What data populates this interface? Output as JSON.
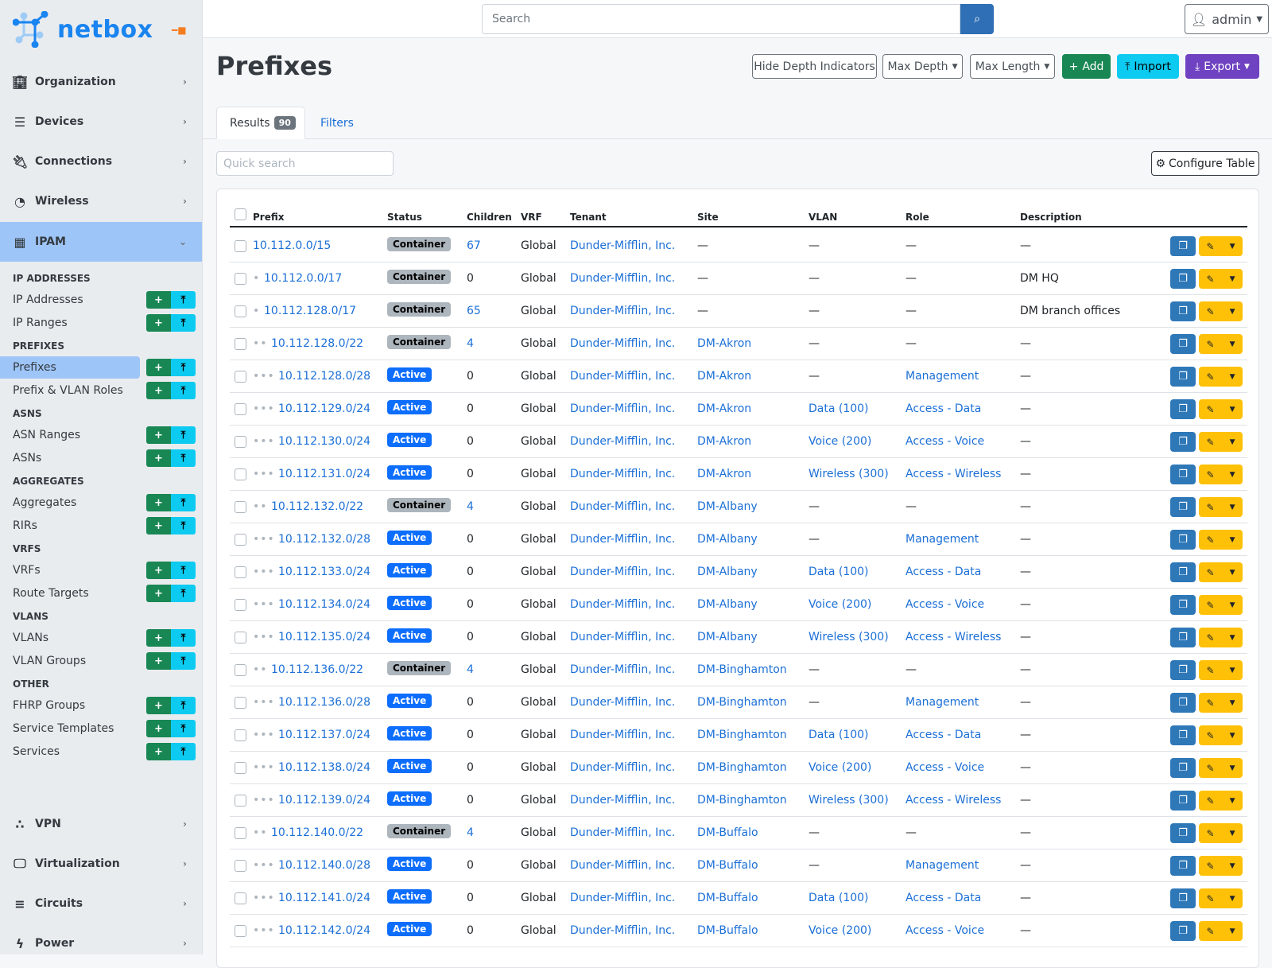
{
  "brand": {
    "name": "netbox"
  },
  "sidebar": {
    "menus_top": [
      {
        "label": "Organization",
        "icon": "building-icon"
      },
      {
        "label": "Devices",
        "icon": "server-icon"
      },
      {
        "label": "Connections",
        "icon": "plug-icon"
      },
      {
        "label": "Wireless",
        "icon": "wifi-icon"
      }
    ],
    "active_menu": {
      "label": "IPAM",
      "icon": "ipam-icon"
    },
    "sections": [
      {
        "title": "IP ADDRESSES",
        "items": [
          "IP Addresses",
          "IP Ranges"
        ]
      },
      {
        "title": "PREFIXES",
        "items": [
          "Prefixes",
          "Prefix & VLAN Roles"
        ]
      },
      {
        "title": "ASNS",
        "items": [
          "ASN Ranges",
          "ASNs"
        ]
      },
      {
        "title": "AGGREGATES",
        "items": [
          "Aggregates",
          "RIRs"
        ]
      },
      {
        "title": "VRFS",
        "items": [
          "VRFs",
          "Route Targets"
        ]
      },
      {
        "title": "VLANS",
        "items": [
          "VLANs",
          "VLAN Groups"
        ]
      },
      {
        "title": "OTHER",
        "items": [
          "FHRP Groups",
          "Service Templates",
          "Services"
        ]
      }
    ],
    "selected_item": "Prefixes",
    "menus_bottom": [
      {
        "label": "VPN",
        "icon": "vpn-icon"
      },
      {
        "label": "Virtualization",
        "icon": "monitor-icon"
      },
      {
        "label": "Circuits",
        "icon": "circuits-icon"
      },
      {
        "label": "Power",
        "icon": "bolt-icon"
      }
    ]
  },
  "header": {
    "search_placeholder": "Search",
    "user": "admin"
  },
  "page": {
    "title": "Prefixes",
    "buttons": {
      "hide_depth": "Hide Depth Indicators",
      "max_depth": "Max Depth",
      "max_length": "Max Length",
      "add": "Add",
      "import": "Import",
      "export": "Export"
    },
    "tabs": {
      "results": "Results",
      "results_count": "90",
      "filters": "Filters"
    },
    "quick_search_placeholder": "Quick search",
    "configure_table": "Configure Table"
  },
  "colors": {
    "primary": "#0d6efd",
    "success": "#198754",
    "info": "#0dcaf0",
    "purple": "#6f42c1",
    "warning": "#ffc107",
    "sidebar_active": "#9ec5f7"
  },
  "table": {
    "columns": [
      "Prefix",
      "Status",
      "Children",
      "VRF",
      "Tenant",
      "Site",
      "VLAN",
      "Role",
      "Description"
    ],
    "rows": [
      {
        "depth": 0,
        "prefix": "10.112.0.0/15",
        "status": "Container",
        "children": "67",
        "vrf": "Global",
        "tenant": "Dunder-Mifflin, Inc.",
        "site": "—",
        "vlan": "—",
        "role": "—",
        "description": "—"
      },
      {
        "depth": 1,
        "prefix": "10.112.0.0/17",
        "status": "Container",
        "children": "0",
        "vrf": "Global",
        "tenant": "Dunder-Mifflin, Inc.",
        "site": "—",
        "vlan": "—",
        "role": "—",
        "description": "DM HQ"
      },
      {
        "depth": 1,
        "prefix": "10.112.128.0/17",
        "status": "Container",
        "children": "65",
        "vrf": "Global",
        "tenant": "Dunder-Mifflin, Inc.",
        "site": "—",
        "vlan": "—",
        "role": "—",
        "description": "DM branch offices"
      },
      {
        "depth": 2,
        "prefix": "10.112.128.0/22",
        "status": "Container",
        "children": "4",
        "vrf": "Global",
        "tenant": "Dunder-Mifflin, Inc.",
        "site": "DM-Akron",
        "vlan": "—",
        "role": "—",
        "description": "—"
      },
      {
        "depth": 3,
        "prefix": "10.112.128.0/28",
        "status": "Active",
        "children": "0",
        "vrf": "Global",
        "tenant": "Dunder-Mifflin, Inc.",
        "site": "DM-Akron",
        "vlan": "—",
        "role": "Management",
        "description": "—"
      },
      {
        "depth": 3,
        "prefix": "10.112.129.0/24",
        "status": "Active",
        "children": "0",
        "vrf": "Global",
        "tenant": "Dunder-Mifflin, Inc.",
        "site": "DM-Akron",
        "vlan": "Data (100)",
        "role": "Access - Data",
        "description": "—"
      },
      {
        "depth": 3,
        "prefix": "10.112.130.0/24",
        "status": "Active",
        "children": "0",
        "vrf": "Global",
        "tenant": "Dunder-Mifflin, Inc.",
        "site": "DM-Akron",
        "vlan": "Voice (200)",
        "role": "Access - Voice",
        "description": "—"
      },
      {
        "depth": 3,
        "prefix": "10.112.131.0/24",
        "status": "Active",
        "children": "0",
        "vrf": "Global",
        "tenant": "Dunder-Mifflin, Inc.",
        "site": "DM-Akron",
        "vlan": "Wireless (300)",
        "role": "Access - Wireless",
        "description": "—"
      },
      {
        "depth": 2,
        "prefix": "10.112.132.0/22",
        "status": "Container",
        "children": "4",
        "vrf": "Global",
        "tenant": "Dunder-Mifflin, Inc.",
        "site": "DM-Albany",
        "vlan": "—",
        "role": "—",
        "description": "—"
      },
      {
        "depth": 3,
        "prefix": "10.112.132.0/28",
        "status": "Active",
        "children": "0",
        "vrf": "Global",
        "tenant": "Dunder-Mifflin, Inc.",
        "site": "DM-Albany",
        "vlan": "—",
        "role": "Management",
        "description": "—"
      },
      {
        "depth": 3,
        "prefix": "10.112.133.0/24",
        "status": "Active",
        "children": "0",
        "vrf": "Global",
        "tenant": "Dunder-Mifflin, Inc.",
        "site": "DM-Albany",
        "vlan": "Data (100)",
        "role": "Access - Data",
        "description": "—"
      },
      {
        "depth": 3,
        "prefix": "10.112.134.0/24",
        "status": "Active",
        "children": "0",
        "vrf": "Global",
        "tenant": "Dunder-Mifflin, Inc.",
        "site": "DM-Albany",
        "vlan": "Voice (200)",
        "role": "Access - Voice",
        "description": "—"
      },
      {
        "depth": 3,
        "prefix": "10.112.135.0/24",
        "status": "Active",
        "children": "0",
        "vrf": "Global",
        "tenant": "Dunder-Mifflin, Inc.",
        "site": "DM-Albany",
        "vlan": "Wireless (300)",
        "role": "Access - Wireless",
        "description": "—"
      },
      {
        "depth": 2,
        "prefix": "10.112.136.0/22",
        "status": "Container",
        "children": "4",
        "vrf": "Global",
        "tenant": "Dunder-Mifflin, Inc.",
        "site": "DM-Binghamton",
        "vlan": "—",
        "role": "—",
        "description": "—"
      },
      {
        "depth": 3,
        "prefix": "10.112.136.0/28",
        "status": "Active",
        "children": "0",
        "vrf": "Global",
        "tenant": "Dunder-Mifflin, Inc.",
        "site": "DM-Binghamton",
        "vlan": "—",
        "role": "Management",
        "description": "—"
      },
      {
        "depth": 3,
        "prefix": "10.112.137.0/24",
        "status": "Active",
        "children": "0",
        "vrf": "Global",
        "tenant": "Dunder-Mifflin, Inc.",
        "site": "DM-Binghamton",
        "vlan": "Data (100)",
        "role": "Access - Data",
        "description": "—"
      },
      {
        "depth": 3,
        "prefix": "10.112.138.0/24",
        "status": "Active",
        "children": "0",
        "vrf": "Global",
        "tenant": "Dunder-Mifflin, Inc.",
        "site": "DM-Binghamton",
        "vlan": "Voice (200)",
        "role": "Access - Voice",
        "description": "—"
      },
      {
        "depth": 3,
        "prefix": "10.112.139.0/24",
        "status": "Active",
        "children": "0",
        "vrf": "Global",
        "tenant": "Dunder-Mifflin, Inc.",
        "site": "DM-Binghamton",
        "vlan": "Wireless (300)",
        "role": "Access - Wireless",
        "description": "—"
      },
      {
        "depth": 2,
        "prefix": "10.112.140.0/22",
        "status": "Container",
        "children": "4",
        "vrf": "Global",
        "tenant": "Dunder-Mifflin, Inc.",
        "site": "DM-Buffalo",
        "vlan": "—",
        "role": "—",
        "description": "—"
      },
      {
        "depth": 3,
        "prefix": "10.112.140.0/28",
        "status": "Active",
        "children": "0",
        "vrf": "Global",
        "tenant": "Dunder-Mifflin, Inc.",
        "site": "DM-Buffalo",
        "vlan": "—",
        "role": "Management",
        "description": "—"
      },
      {
        "depth": 3,
        "prefix": "10.112.141.0/24",
        "status": "Active",
        "children": "0",
        "vrf": "Global",
        "tenant": "Dunder-Mifflin, Inc.",
        "site": "DM-Buffalo",
        "vlan": "Data (100)",
        "role": "Access - Data",
        "description": "—"
      },
      {
        "depth": 3,
        "prefix": "10.112.142.0/24",
        "status": "Active",
        "children": "0",
        "vrf": "Global",
        "tenant": "Dunder-Mifflin, Inc.",
        "site": "DM-Buffalo",
        "vlan": "Voice (200)",
        "role": "Access - Voice",
        "description": "—"
      }
    ]
  }
}
